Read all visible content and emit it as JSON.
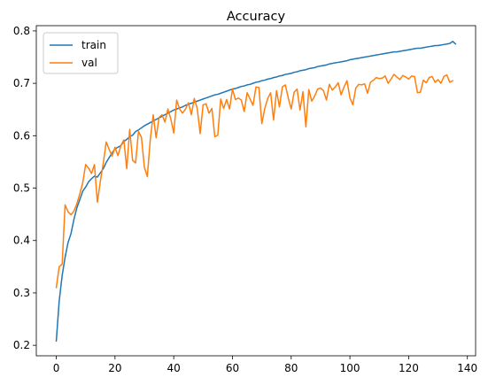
{
  "chart_data": {
    "type": "line",
    "title": "Accuracy",
    "xlabel": "",
    "ylabel": "",
    "xlim": [
      -6.8,
      142.8
    ],
    "ylim": [
      0.18,
      0.81
    ],
    "x_ticks": [
      0,
      20,
      40,
      60,
      80,
      100,
      120,
      140
    ],
    "y_ticks": [
      0.2,
      0.3,
      0.4,
      0.5,
      0.6,
      0.7,
      0.8
    ],
    "grid": false,
    "legend_position": "top-left",
    "series": [
      {
        "name": "train",
        "color": "#1f77b4",
        "values": [
          0.208,
          0.285,
          0.333,
          0.368,
          0.396,
          0.413,
          0.44,
          0.462,
          0.478,
          0.494,
          0.502,
          0.512,
          0.518,
          0.523,
          0.521,
          0.529,
          0.537,
          0.549,
          0.558,
          0.567,
          0.575,
          0.578,
          0.581,
          0.589,
          0.593,
          0.598,
          0.601,
          0.608,
          0.611,
          0.615,
          0.619,
          0.622,
          0.625,
          0.628,
          0.631,
          0.634,
          0.637,
          0.64,
          0.643,
          0.646,
          0.649,
          0.651,
          0.653,
          0.655,
          0.658,
          0.66,
          0.662,
          0.664,
          0.666,
          0.668,
          0.67,
          0.672,
          0.674,
          0.676,
          0.678,
          0.679,
          0.681,
          0.683,
          0.685,
          0.687,
          0.689,
          0.69,
          0.692,
          0.694,
          0.695,
          0.697,
          0.698,
          0.7,
          0.702,
          0.703,
          0.705,
          0.706,
          0.708,
          0.709,
          0.711,
          0.712,
          0.714,
          0.715,
          0.717,
          0.718,
          0.719,
          0.721,
          0.722,
          0.724,
          0.725,
          0.726,
          0.728,
          0.729,
          0.73,
          0.732,
          0.733,
          0.734,
          0.735,
          0.737,
          0.738,
          0.739,
          0.74,
          0.741,
          0.742,
          0.743,
          0.745,
          0.746,
          0.747,
          0.748,
          0.749,
          0.75,
          0.751,
          0.752,
          0.753,
          0.754,
          0.755,
          0.756,
          0.757,
          0.758,
          0.759,
          0.76,
          0.76,
          0.761,
          0.762,
          0.763,
          0.764,
          0.765,
          0.766,
          0.767,
          0.767,
          0.768,
          0.769,
          0.77,
          0.771,
          0.772,
          0.772,
          0.773,
          0.774,
          0.775,
          0.776,
          0.78,
          0.775
        ]
      },
      {
        "name": "val",
        "color": "#ff7f0e",
        "values": [
          0.31,
          0.35,
          0.355,
          0.468,
          0.455,
          0.449,
          0.456,
          0.47,
          0.489,
          0.51,
          0.545,
          0.538,
          0.528,
          0.545,
          0.473,
          0.513,
          0.547,
          0.588,
          0.574,
          0.561,
          0.578,
          0.562,
          0.581,
          0.592,
          0.537,
          0.612,
          0.553,
          0.548,
          0.608,
          0.597,
          0.54,
          0.522,
          0.592,
          0.64,
          0.596,
          0.635,
          0.64,
          0.626,
          0.651,
          0.632,
          0.605,
          0.668,
          0.651,
          0.643,
          0.651,
          0.663,
          0.64,
          0.671,
          0.652,
          0.604,
          0.659,
          0.661,
          0.643,
          0.652,
          0.598,
          0.601,
          0.67,
          0.652,
          0.669,
          0.651,
          0.689,
          0.669,
          0.672,
          0.668,
          0.646,
          0.682,
          0.67,
          0.658,
          0.693,
          0.692,
          0.623,
          0.652,
          0.671,
          0.682,
          0.63,
          0.686,
          0.655,
          0.693,
          0.697,
          0.672,
          0.651,
          0.683,
          0.689,
          0.649,
          0.684,
          0.617,
          0.688,
          0.666,
          0.676,
          0.689,
          0.691,
          0.686,
          0.668,
          0.698,
          0.687,
          0.693,
          0.701,
          0.678,
          0.693,
          0.705,
          0.672,
          0.659,
          0.691,
          0.698,
          0.697,
          0.699,
          0.681,
          0.702,
          0.706,
          0.711,
          0.709,
          0.71,
          0.714,
          0.7,
          0.708,
          0.717,
          0.712,
          0.707,
          0.715,
          0.712,
          0.708,
          0.714,
          0.713,
          0.682,
          0.683,
          0.706,
          0.701,
          0.711,
          0.713,
          0.702,
          0.707,
          0.7,
          0.713,
          0.716,
          0.702,
          0.705
        ]
      }
    ]
  }
}
